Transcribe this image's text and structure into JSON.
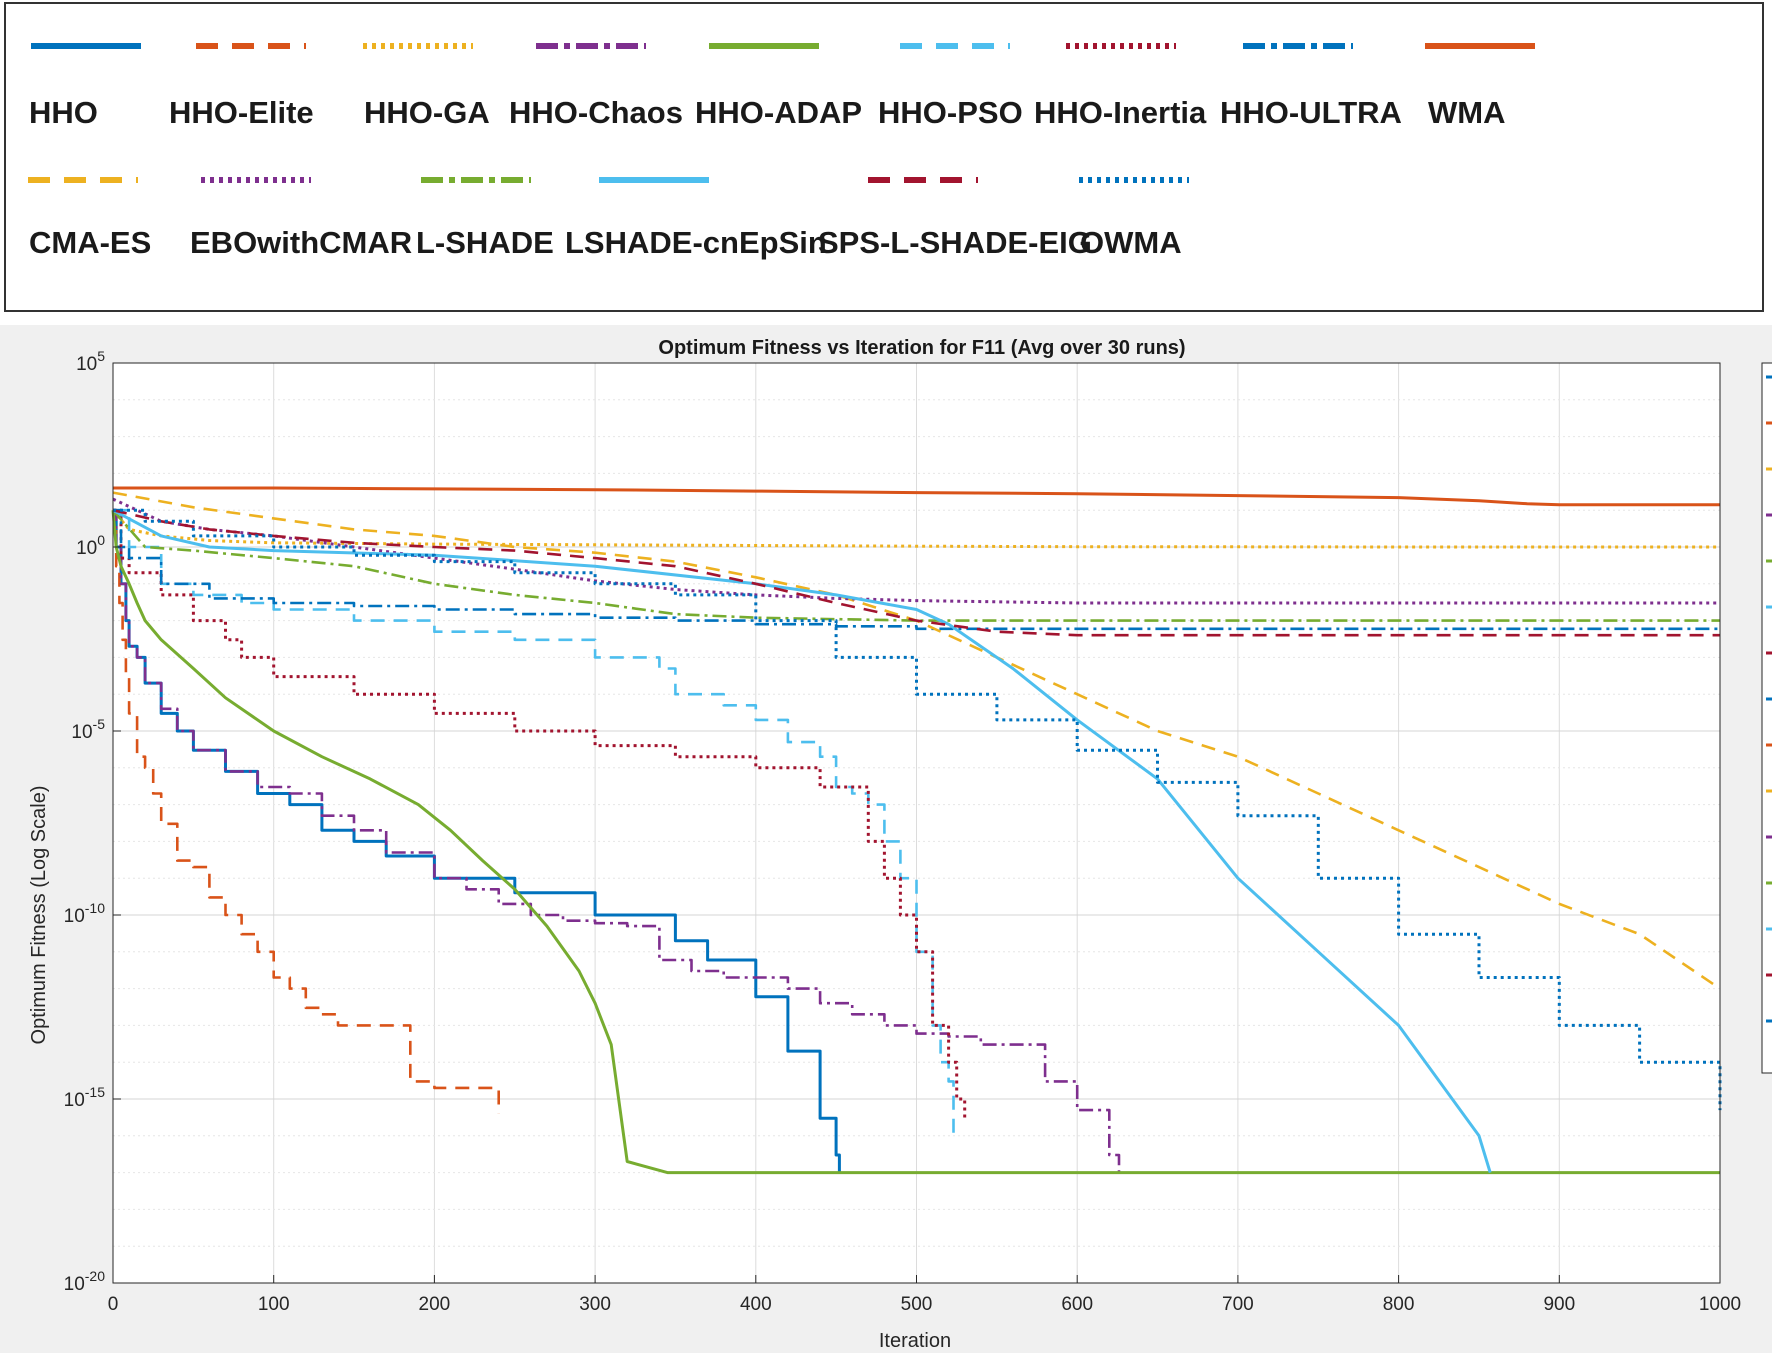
{
  "chart_data": {
    "type": "line",
    "title": "Optimum Fitness vs Iteration for F11 (Avg over 30 runs)",
    "xlabel": "Iteration",
    "ylabel": "Optimum Fitness (Log Scale)",
    "xlim": [
      0,
      1000
    ],
    "ylim": [
      1e-20,
      100000
    ],
    "yscale": "log",
    "grid": true,
    "x_ticks": [
      "0",
      "100",
      "200",
      "300",
      "400",
      "500",
      "600",
      "700",
      "800",
      "900",
      "1000"
    ],
    "y_tick_base": "10",
    "y_ticks": [
      {
        "exp": "5",
        "value": 100000
      },
      {
        "exp": "0",
        "value": 1
      },
      {
        "exp": "-5",
        "value": 1e-05
      },
      {
        "exp": "-10",
        "value": 1e-10
      },
      {
        "exp": "-15",
        "value": 1e-15
      },
      {
        "exp": "-20",
        "value": 1e-20
      }
    ],
    "legend_position": "top",
    "series": [
      {
        "name": "HHO",
        "color": "#0072BD",
        "dash": "solid",
        "step": true,
        "x": [
          0,
          2,
          5,
          8,
          10,
          15,
          20,
          30,
          40,
          50,
          70,
          90,
          110,
          130,
          150,
          170,
          200,
          220,
          250,
          280,
          300,
          320,
          350,
          370,
          400,
          420,
          440,
          450,
          452
        ],
        "y": [
          10,
          1,
          0.1,
          0.01,
          0.002,
          0.001,
          0.0002,
          3e-05,
          1e-05,
          3e-06,
          8e-07,
          2e-07,
          1e-07,
          2e-08,
          1e-08,
          4e-09,
          1e-09,
          1e-09,
          4e-10,
          4e-10,
          1e-10,
          1e-10,
          2e-11,
          6e-12,
          6e-13,
          2e-14,
          3e-16,
          3e-17,
          1e-17
        ]
      },
      {
        "name": "HHO-Elite",
        "color": "#D95319",
        "dash": "dashed",
        "step": true,
        "x": [
          0,
          2,
          4,
          6,
          8,
          10,
          15,
          20,
          25,
          30,
          40,
          50,
          60,
          70,
          80,
          90,
          100,
          110,
          120,
          130,
          140,
          150,
          160,
          170,
          180,
          185,
          190,
          200,
          210,
          220,
          230,
          240
        ],
        "y": [
          10,
          0.3,
          0.03,
          0.003,
          0.0003,
          3e-05,
          2e-06,
          1e-06,
          2e-07,
          3e-08,
          3e-09,
          2e-09,
          3e-10,
          1e-10,
          3e-11,
          1e-11,
          2e-12,
          1e-12,
          3e-13,
          2e-13,
          1e-13,
          1e-13,
          1e-13,
          1e-13,
          1e-13,
          3e-15,
          3e-15,
          2e-15,
          2e-15,
          2e-15,
          2e-15,
          4e-16
        ]
      },
      {
        "name": "HHO-GA",
        "color": "#EDB120",
        "dash": "dotted",
        "step": false,
        "x": [
          0,
          10,
          30,
          60,
          100,
          200,
          300,
          400,
          500,
          600,
          700,
          800,
          900,
          1000
        ],
        "y": [
          10,
          3,
          2,
          1.5,
          1.3,
          1.2,
          1.15,
          1.1,
          1.05,
          1.02,
          1.01,
          1,
          1,
          1
        ]
      },
      {
        "name": "HHO-Chaos",
        "color": "#7E2F8E",
        "dash": "dashdot",
        "step": true,
        "x": [
          0,
          2,
          5,
          8,
          10,
          15,
          20,
          30,
          40,
          50,
          70,
          90,
          110,
          130,
          150,
          170,
          200,
          220,
          240,
          260,
          280,
          300,
          320,
          340,
          360,
          380,
          400,
          420,
          440,
          460,
          480,
          500,
          520,
          540,
          560,
          580,
          600,
          620,
          626
        ],
        "y": [
          10,
          1,
          0.1,
          0.01,
          0.002,
          0.001,
          0.0002,
          4e-05,
          1e-05,
          3e-06,
          8e-07,
          3e-07,
          2e-07,
          5e-08,
          2e-08,
          5e-09,
          1e-09,
          5e-10,
          2e-10,
          1e-10,
          7e-11,
          6e-11,
          5e-11,
          6e-12,
          3e-12,
          2e-12,
          2e-12,
          1e-12,
          4e-13,
          2e-13,
          1e-13,
          6e-14,
          5e-14,
          3e-14,
          3e-14,
          3e-15,
          5e-16,
          3e-17,
          1e-17
        ]
      },
      {
        "name": "HHO-ADAP",
        "color": "#77AC30",
        "dash": "solid",
        "step": false,
        "x": [
          0,
          2,
          5,
          10,
          15,
          20,
          30,
          50,
          70,
          100,
          130,
          160,
          190,
          210,
          230,
          250,
          270,
          290,
          300,
          310,
          320,
          345,
          1000
        ],
        "y": [
          10,
          1,
          0.3,
          0.1,
          0.03,
          0.01,
          0.003,
          0.0005,
          8e-05,
          1e-05,
          2e-06,
          5e-07,
          1e-07,
          2e-08,
          3e-09,
          5e-10,
          5e-11,
          3e-12,
          4e-13,
          3e-14,
          2e-17,
          1e-17,
          1e-17
        ]
      },
      {
        "name": "HHO-PSO",
        "color": "#4DBEEE",
        "dash": "dashed",
        "step": true,
        "x": [
          0,
          10,
          30,
          50,
          80,
          100,
          150,
          200,
          250,
          300,
          340,
          350,
          380,
          400,
          420,
          440,
          450,
          460,
          470,
          480,
          490,
          500,
          510,
          515,
          520,
          523
        ],
        "y": [
          10,
          1,
          0.1,
          0.05,
          0.03,
          0.02,
          0.01,
          0.005,
          0.003,
          0.001,
          0.0005,
          0.0001,
          5e-05,
          2e-05,
          5e-06,
          2e-06,
          3e-07,
          2e-07,
          1e-07,
          1e-08,
          1e-09,
          1e-11,
          1e-13,
          1e-14,
          3e-15,
          1e-16
        ]
      },
      {
        "name": "HHO-Inertia",
        "color": "#A2142F",
        "dash": "dotted",
        "step": true,
        "x": [
          0,
          5,
          10,
          30,
          50,
          70,
          80,
          100,
          150,
          200,
          250,
          300,
          350,
          400,
          440,
          460,
          470,
          480,
          490,
          500,
          510,
          520,
          525,
          530
        ],
        "y": [
          10,
          0.5,
          0.2,
          0.05,
          0.01,
          0.003,
          0.001,
          0.0003,
          0.0001,
          3e-05,
          1e-05,
          4e-06,
          2e-06,
          1e-06,
          3e-07,
          3e-07,
          1e-08,
          1e-09,
          1e-10,
          1e-11,
          1e-13,
          1e-14,
          1e-15,
          3e-16
        ]
      },
      {
        "name": "HHO-ULTRA",
        "color": "#0072BD",
        "dash": "dashdot",
        "step": true,
        "x": [
          0,
          5,
          10,
          30,
          60,
          100,
          150,
          200,
          250,
          300,
          350,
          400,
          450,
          500,
          600,
          700,
          800,
          900,
          1000
        ],
        "y": [
          10,
          1,
          0.5,
          0.1,
          0.04,
          0.03,
          0.025,
          0.02,
          0.015,
          0.012,
          0.01,
          0.008,
          0.007,
          0.006,
          0.006,
          0.006,
          0.006,
          0.006,
          0.006
        ]
      },
      {
        "name": "WMA",
        "color": "#D95319",
        "dash": "solid",
        "step": false,
        "x": [
          0,
          100,
          200,
          300,
          400,
          500,
          600,
          700,
          800,
          850,
          880,
          900,
          1000
        ],
        "y": [
          40,
          40,
          38,
          36,
          33,
          30,
          28,
          25,
          22,
          18,
          15,
          14,
          14
        ]
      },
      {
        "name": "CMA-ES",
        "color": "#EDB120",
        "dash": "dashed",
        "step": false,
        "x": [
          0,
          50,
          100,
          150,
          200,
          250,
          300,
          350,
          400,
          450,
          500,
          550,
          600,
          650,
          700,
          750,
          800,
          850,
          900,
          950,
          1000
        ],
        "y": [
          30,
          12,
          6,
          3,
          2,
          1,
          0.7,
          0.4,
          0.15,
          0.05,
          0.01,
          0.001,
          0.0001,
          1e-05,
          2e-06,
          2e-07,
          2e-08,
          2e-09,
          2e-10,
          3e-11,
          1e-12
        ]
      },
      {
        "name": "EBOwithCMAR",
        "color": "#7E2F8E",
        "dash": "dotted",
        "step": false,
        "x": [
          0,
          30,
          60,
          100,
          150,
          200,
          250,
          300,
          350,
          400,
          450,
          500,
          600,
          700,
          800,
          900,
          1000
        ],
        "y": [
          20,
          5,
          3,
          2,
          1,
          0.5,
          0.25,
          0.12,
          0.07,
          0.05,
          0.04,
          0.035,
          0.03,
          0.03,
          0.03,
          0.03,
          0.03
        ]
      },
      {
        "name": "L-SHADE",
        "color": "#77AC30",
        "dash": "dashdot",
        "step": false,
        "x": [
          0,
          20,
          50,
          100,
          150,
          200,
          250,
          300,
          350,
          400,
          500,
          600,
          700,
          800,
          900,
          1000
        ],
        "y": [
          10,
          1,
          0.8,
          0.5,
          0.3,
          0.1,
          0.05,
          0.03,
          0.015,
          0.012,
          0.01,
          0.01,
          0.01,
          0.01,
          0.01,
          0.01
        ]
      },
      {
        "name": "LSHADE-cnEpSin",
        "color": "#4DBEEE",
        "dash": "solid",
        "step": false,
        "x": [
          0,
          30,
          60,
          100,
          200,
          300,
          400,
          450,
          500,
          520,
          560,
          600,
          650,
          700,
          750,
          800,
          850,
          857
        ],
        "y": [
          10,
          2,
          1,
          0.8,
          0.6,
          0.3,
          0.1,
          0.05,
          0.02,
          0.008,
          0.0005,
          2e-05,
          5e-07,
          1e-09,
          1e-11,
          1e-13,
          1e-16,
          1e-17
        ]
      },
      {
        "name": "SPS-L-SHADE-EIG",
        "color": "#A2142F",
        "dash": "dashed",
        "step": false,
        "x": [
          0,
          30,
          60,
          100,
          150,
          200,
          250,
          300,
          350,
          400,
          450,
          500,
          550,
          600,
          700,
          800,
          900,
          1000
        ],
        "y": [
          10,
          5,
          3,
          2,
          1.3,
          1,
          0.8,
          0.5,
          0.3,
          0.1,
          0.03,
          0.01,
          0.005,
          0.004,
          0.004,
          0.004,
          0.004,
          0.004
        ]
      },
      {
        "name": "OWMA",
        "color": "#0072BD",
        "dash": "dotted",
        "step": true,
        "x": [
          0,
          20,
          50,
          100,
          150,
          200,
          250,
          300,
          350,
          400,
          450,
          500,
          550,
          600,
          650,
          700,
          750,
          800,
          850,
          900,
          950,
          1000
        ],
        "y": [
          10,
          5,
          2,
          1,
          0.6,
          0.4,
          0.2,
          0.1,
          0.05,
          0.01,
          0.001,
          0.0001,
          2e-05,
          3e-06,
          4e-07,
          5e-08,
          1e-09,
          3e-11,
          2e-12,
          1e-13,
          1e-14,
          5e-16
        ]
      }
    ]
  }
}
